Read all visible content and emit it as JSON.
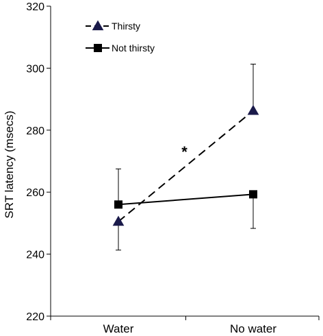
{
  "chart_data": {
    "type": "line",
    "title": "",
    "xlabel": "",
    "ylabel": "SRT latency (msecs)",
    "categories": [
      "Water",
      "No water"
    ],
    "ylim": [
      220,
      320
    ],
    "yticks": [
      220,
      240,
      260,
      280,
      300,
      320
    ],
    "grid": false,
    "legend_position": "top-left",
    "series": [
      {
        "name": "Thirsty",
        "values": [
          250.5,
          286.3
        ],
        "error": [
          9.2,
          15.0
        ],
        "marker": "triangle",
        "line_style": "dashed",
        "color": "#1a1a4a"
      },
      {
        "name": "Not thirsty",
        "values": [
          256.0,
          259.3
        ],
        "error": [
          11.5,
          11.0
        ],
        "marker": "square",
        "line_style": "solid",
        "color": "#000000"
      }
    ],
    "annotations": [
      {
        "text": "*",
        "x_between": [
          "Water",
          "No water"
        ],
        "y": 274
      }
    ]
  }
}
